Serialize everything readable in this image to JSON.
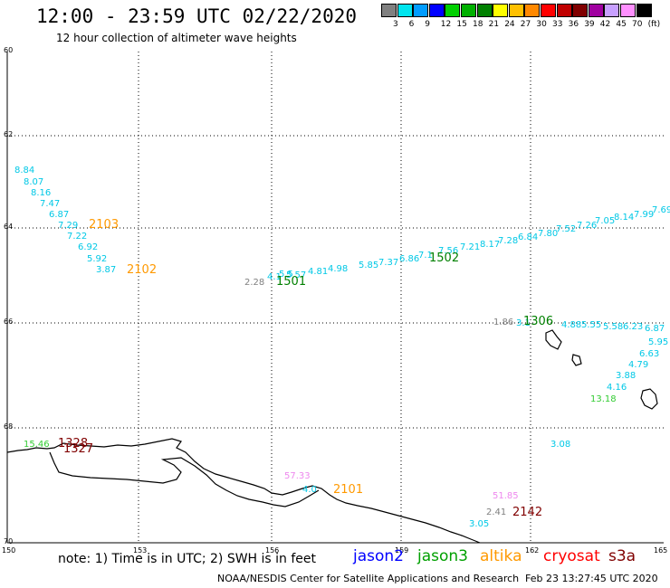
{
  "header": {
    "title": "12:00 - 23:59 UTC 02/22/2020",
    "subtitle": "12 hour collection of altimeter wave heights"
  },
  "legend": {
    "colors": [
      "#808080",
      "#00e5ee",
      "#009cff",
      "#0000ff",
      "#00d000",
      "#00b000",
      "#008000",
      "#ffff00",
      "#ffc000",
      "#ff8800",
      "#ff0000",
      "#c00000",
      "#800000",
      "#a000a0",
      "#c8a0ff",
      "#ff90ff",
      "#000000"
    ],
    "labels": [
      "3",
      "6",
      "9",
      "12",
      "15",
      "18",
      "21",
      "24",
      "27",
      "30",
      "33",
      "36",
      "39",
      "42",
      "45",
      "70",
      "(ft)"
    ]
  },
  "axes": {
    "lat_labels": [
      "60",
      "62",
      "64",
      "66",
      "68",
      "70"
    ],
    "lon_labels": [
      "150",
      "153",
      "156",
      "159",
      "162",
      "165"
    ]
  },
  "observations": [
    {
      "text": "8.84",
      "color": "#00c8e6"
    },
    {
      "text": "8.07",
      "color": "#00c8e6"
    },
    {
      "text": "8.16",
      "color": "#00c8e6"
    },
    {
      "text": "7.47",
      "color": "#00c8e6"
    },
    {
      "text": "6.87",
      "color": "#00c8e6"
    },
    {
      "text": "7.29",
      "color": "#00c8e6"
    },
    {
      "text": "7.22",
      "color": "#00c8e6"
    },
    {
      "text": "6.92",
      "color": "#00c8e6"
    },
    {
      "text": "5.92",
      "color": "#00c8e6"
    },
    {
      "text": "3.87",
      "color": "#00c8e6"
    },
    {
      "text": "2103",
      "color": "#ff9900"
    },
    {
      "text": "2102",
      "color": "#ff9900"
    },
    {
      "text": "2.28",
      "color": "#808080"
    },
    {
      "text": "4.1",
      "color": "#00c8e6"
    },
    {
      "text": "5.5",
      "color": "#00c8e6"
    },
    {
      "text": "5.57",
      "color": "#00c8e6"
    },
    {
      "text": "4.81",
      "color": "#00c8e6"
    },
    {
      "text": "4.98",
      "color": "#00c8e6"
    },
    {
      "text": "1501",
      "color": "#008000"
    },
    {
      "text": "5.85",
      "color": "#00c8e6"
    },
    {
      "text": "7.37",
      "color": "#00c8e6"
    },
    {
      "text": "6.86",
      "color": "#00c8e6"
    },
    {
      "text": "7.1",
      "color": "#00c8e6"
    },
    {
      "text": "7.56",
      "color": "#00c8e6"
    },
    {
      "text": "1502",
      "color": "#008000"
    },
    {
      "text": "7.21",
      "color": "#00c8e6"
    },
    {
      "text": "8.17",
      "color": "#00c8e6"
    },
    {
      "text": "7.28",
      "color": "#00c8e6"
    },
    {
      "text": "6.84",
      "color": "#00c8e6"
    },
    {
      "text": "7.80",
      "color": "#00c8e6"
    },
    {
      "text": "7.52",
      "color": "#00c8e6"
    },
    {
      "text": "7.26",
      "color": "#00c8e6"
    },
    {
      "text": "7.05",
      "color": "#00c8e6"
    },
    {
      "text": "8.14",
      "color": "#00c8e6"
    },
    {
      "text": "7.99",
      "color": "#00c8e6"
    },
    {
      "text": "7.69",
      "color": "#00c8e6"
    },
    {
      "text": "1.86",
      "color": "#808080"
    },
    {
      "text": "3.1",
      "color": "#00c8e6"
    },
    {
      "text": "1306",
      "color": "#008000"
    },
    {
      "text": "4.88",
      "color": "#00c8e6"
    },
    {
      "text": "5.55",
      "color": "#00c8e6"
    },
    {
      "text": "5.58",
      "color": "#00c8e6"
    },
    {
      "text": "6.23",
      "color": "#00c8e6"
    },
    {
      "text": "6.87",
      "color": "#00c8e6"
    },
    {
      "text": "5.95",
      "color": "#00c8e6"
    },
    {
      "text": "6.63",
      "color": "#00c8e6"
    },
    {
      "text": "4.79",
      "color": "#00c8e6"
    },
    {
      "text": "3.88",
      "color": "#00c8e6"
    },
    {
      "text": "4.16",
      "color": "#00c8e6"
    },
    {
      "text": "13.18",
      "color": "#33cc33"
    },
    {
      "text": "15.46",
      "color": "#33cc33"
    },
    {
      "text": "1328",
      "color": "#800000"
    },
    {
      "text": "1327",
      "color": "#800000"
    },
    {
      "text": "3.08",
      "color": "#00c8e6"
    },
    {
      "text": "57.33",
      "color": "#ee88ee"
    },
    {
      "text": "4.0",
      "color": "#00c8e6"
    },
    {
      "text": "2101",
      "color": "#ff9900"
    },
    {
      "text": "51.85",
      "color": "#ee88ee"
    },
    {
      "text": "2.41",
      "color": "#808080"
    },
    {
      "text": "2142",
      "color": "#800000"
    },
    {
      "text": "3.05",
      "color": "#00c8e6"
    }
  ],
  "footer": {
    "note": "note: 1) Time is in UTC; 2) SWH is in feet",
    "satellites": [
      {
        "name": "jason2",
        "color": "#0000ff"
      },
      {
        "name": "jason3",
        "color": "#00a000"
      },
      {
        "name": "altika",
        "color": "#ff9900"
      },
      {
        "name": "cryosat",
        "color": "#ff0000"
      },
      {
        "name": "s3a",
        "color": "#800000"
      }
    ],
    "credit": "NOAA/NESDIS Center for Satellite Applications and Research",
    "timestamp": "Feb 23 13:27:45 UTC 2020"
  }
}
